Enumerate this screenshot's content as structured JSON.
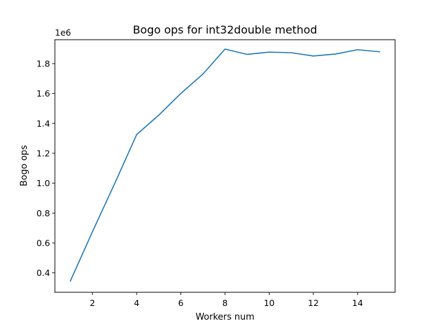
{
  "chart_data": {
    "type": "line",
    "title": "Bogo ops for int32double method",
    "xlabel": "Workers num",
    "ylabel": "Bogo ops",
    "y_offset_label": "1e6",
    "xlim": [
      0.3,
      15.7
    ],
    "ylim": [
      0.27,
      1.96
    ],
    "y_unit_multiplier": 1000000,
    "xticks": [
      2,
      4,
      6,
      8,
      10,
      12,
      14
    ],
    "xtick_labels": [
      "2",
      "4",
      "6",
      "8",
      "10",
      "12",
      "14"
    ],
    "yticks": [
      0.4,
      0.6,
      0.8,
      1.0,
      1.2,
      1.4,
      1.6,
      1.8
    ],
    "ytick_labels": [
      "0.4",
      "0.6",
      "0.8",
      "1.0",
      "1.2",
      "1.4",
      "1.6",
      "1.8"
    ],
    "grid": false,
    "series": [
      {
        "color": "#1f77b4",
        "x": [
          1,
          2,
          3,
          4,
          5,
          6,
          7,
          8,
          9,
          10,
          11,
          12,
          13,
          14,
          15
        ],
        "y": [
          0.345,
          0.675,
          0.995,
          1.325,
          1.455,
          1.6,
          1.73,
          1.897,
          1.862,
          1.877,
          1.873,
          1.851,
          1.864,
          1.893,
          1.879
        ]
      }
    ]
  }
}
